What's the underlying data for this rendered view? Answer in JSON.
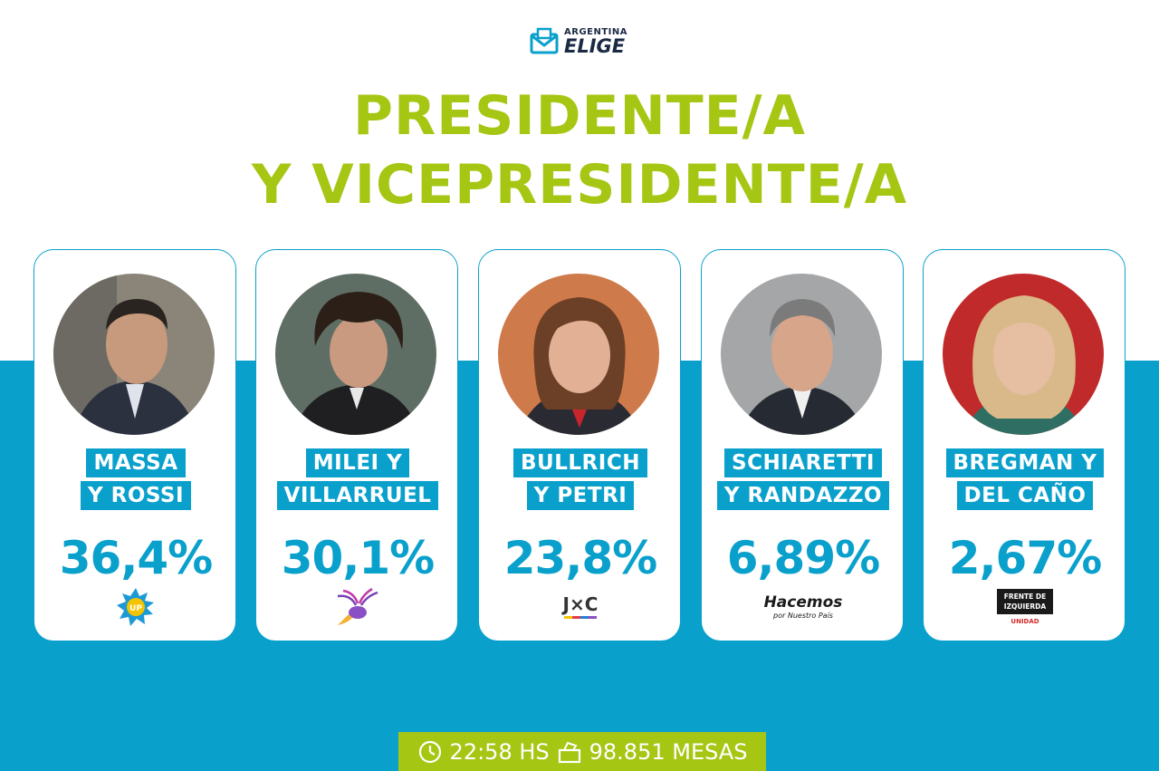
{
  "brand": {
    "line1": "ARGENTINA",
    "line2": "ELIGE"
  },
  "headline": {
    "line1": "PRESIDENTE/A",
    "line2": "Y VICEPRESIDENTE/A"
  },
  "colors": {
    "accent_blue": "#0aa0cc",
    "accent_green": "#a6c614"
  },
  "candidates": [
    {
      "name_line1": "MASSA",
      "name_line2": "Y ROSSI",
      "percent": "36,4%",
      "party_logo": "union-por-la-patria-sun-icon",
      "party_text": "UP"
    },
    {
      "name_line1": "MILEI Y",
      "name_line2": "VILLARRUEL",
      "percent": "30,1%",
      "party_logo": "la-libertad-avanza-bird-icon",
      "party_text": ""
    },
    {
      "name_line1": "BULLRICH",
      "name_line2": "Y PETRI",
      "percent": "23,8%",
      "party_logo": "juntos-por-el-cambio-logo",
      "party_text": "J×C"
    },
    {
      "name_line1": "SCHIARETTI",
      "name_line2": "Y RANDAZZO",
      "percent": "6,89%",
      "party_logo": "hacemos-logo",
      "party_text": "Hacemos",
      "party_subtext": "por Nuestro País"
    },
    {
      "name_line1": "BREGMAN Y",
      "name_line2": "DEL CAÑO",
      "percent": "2,67%",
      "party_logo": "frente-de-izquierda-logo",
      "party_text": "FRENTE DE IZQUIERDA",
      "party_subtext": "UNIDAD"
    }
  ],
  "footer": {
    "time": "22:58 HS",
    "tables": "98.851 MESAS"
  }
}
